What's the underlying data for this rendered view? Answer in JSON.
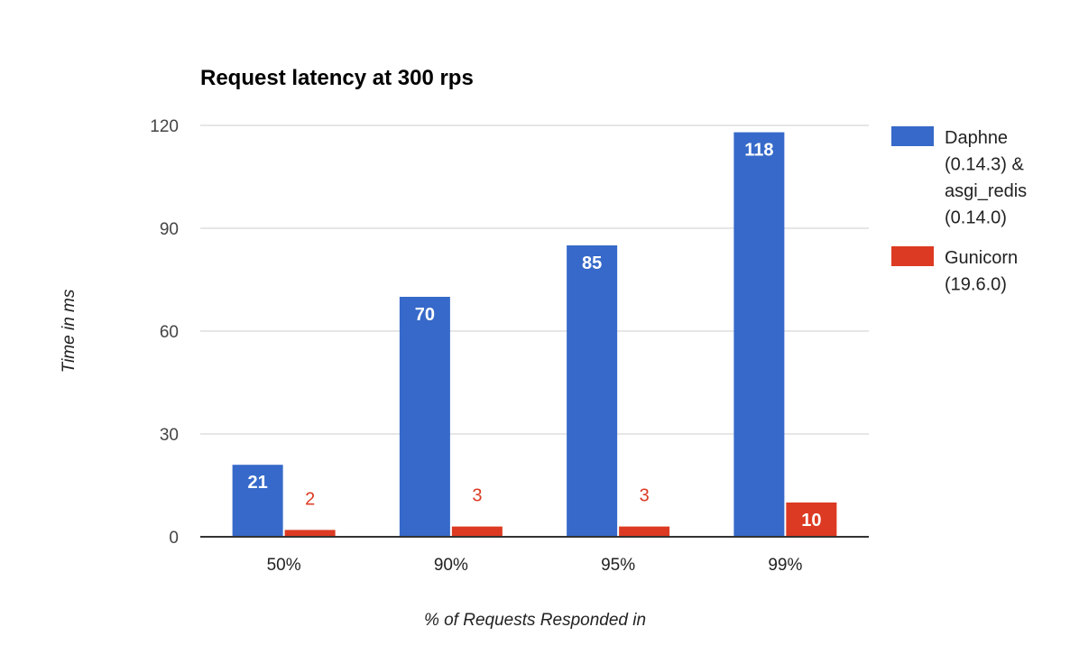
{
  "chart_data": {
    "type": "bar",
    "title": "Request latency at 300 rps",
    "xlabel": "% of Requests Responded in",
    "ylabel": "Time in ms",
    "categories": [
      "50%",
      "90%",
      "95%",
      "99%"
    ],
    "series": [
      {
        "name": "Daphne (0.14.3) & asgi_redis (0.14.0)",
        "legend_lines": [
          "Daphne",
          "(0.14.3) &",
          "asgi_redis",
          "(0.14.0)"
        ],
        "color": "#3669c9",
        "values": [
          21,
          70,
          85,
          118
        ]
      },
      {
        "name": "Gunicorn (19.6.0)",
        "legend_lines": [
          "Gunicorn",
          "(19.6.0)"
        ],
        "color": "#dc3a22",
        "values": [
          2,
          3,
          3,
          10
        ]
      }
    ],
    "ylim": [
      0,
      120
    ],
    "yticks": [
      0,
      30,
      60,
      90,
      120
    ],
    "grid": true,
    "legend": "right",
    "data_labels": true
  }
}
